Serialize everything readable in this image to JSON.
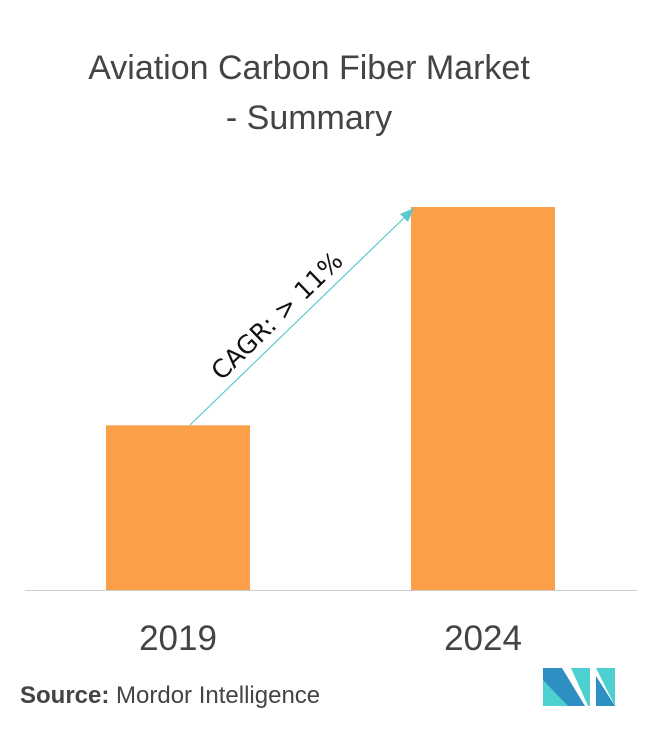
{
  "title_line1": "Aviation Carbon Fiber Market",
  "title_line2": "- Summary",
  "chart_data": {
    "type": "bar",
    "title": "Aviation Carbon Fiber Market - Summary",
    "categories": [
      "2019",
      "2024"
    ],
    "values": [
      0.43,
      1.0
    ],
    "value_note": "relative heights, no axis shown",
    "annotation": "CAGR: > 11%",
    "bar_color": "#FBA049",
    "arrow_color": "#5BC8CD",
    "grid": false
  },
  "source_label": "Source:",
  "source_value": "Mordor Intelligence",
  "logo_colors": [
    "#2E8FC2",
    "#4ECFD0"
  ]
}
